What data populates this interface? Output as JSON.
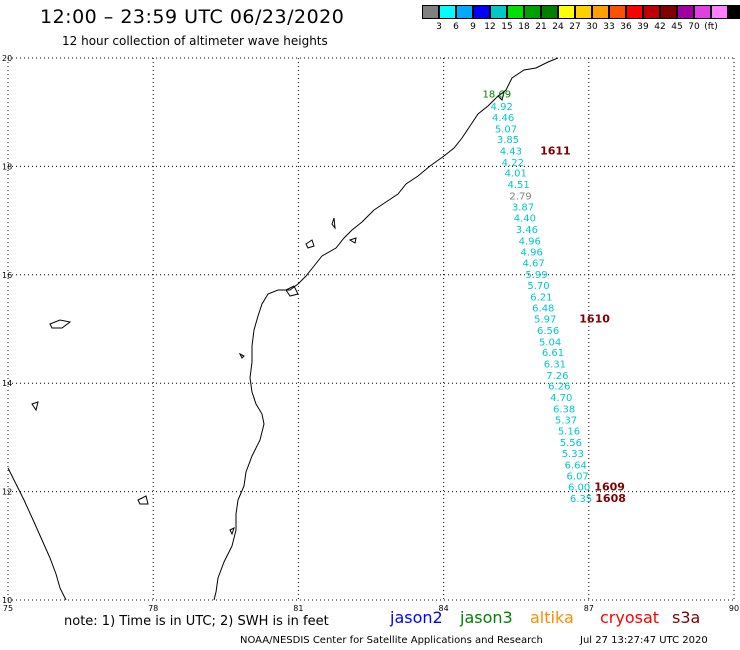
{
  "header": {
    "title": "12:00 – 23:59 UTC 06/23/2020",
    "subtitle": "12 hour collection of altimeter wave heights"
  },
  "legend": {
    "unit": "(ft)",
    "colors": [
      "#808080",
      "#00ffff",
      "#00aaff",
      "#0000ff",
      "#00c8c8",
      "#00e000",
      "#00a000",
      "#008000",
      "#ffff00",
      "#ffd000",
      "#ffa000",
      "#ff5000",
      "#ff0000",
      "#c00000",
      "#800000",
      "#a000a0",
      "#e040e0",
      "#ff80ff",
      "#000000"
    ],
    "labels": [
      "3",
      "6",
      "9",
      "12",
      "15",
      "18",
      "21",
      "24",
      "27",
      "30",
      "33",
      "36",
      "39",
      "42",
      "45",
      "70"
    ]
  },
  "axes": {
    "x_ticks": [
      "75",
      "78",
      "81",
      "84",
      "87",
      "90"
    ],
    "y_ticks": [
      "20",
      "18",
      "16",
      "14",
      "12",
      "10"
    ]
  },
  "observations": [
    {
      "value": "18.69",
      "lon": 85.1,
      "lat": 19.27,
      "color": "#008000"
    },
    {
      "value": "4.92",
      "lon": 85.2,
      "lat": 19.04,
      "color": "#00c8c8"
    },
    {
      "value": "4.46",
      "lon": 85.23,
      "lat": 18.84,
      "color": "#00c8c8"
    },
    {
      "value": "5.07",
      "lon": 85.29,
      "lat": 18.63,
      "color": "#00c8c8"
    },
    {
      "value": "3.85",
      "lon": 85.33,
      "lat": 18.43,
      "color": "#00c8c8"
    },
    {
      "value": "4.43",
      "lon": 85.39,
      "lat": 18.22,
      "color": "#00c8c8"
    },
    {
      "value": "4.22",
      "lon": 85.43,
      "lat": 18.01,
      "color": "#00c8c8"
    },
    {
      "value": "4.01",
      "lon": 85.49,
      "lat": 17.81,
      "color": "#00c8c8"
    },
    {
      "value": "4.51",
      "lon": 85.55,
      "lat": 17.6,
      "color": "#00c8c8"
    },
    {
      "value": "2.79",
      "lon": 85.59,
      "lat": 17.39,
      "color": "#808080"
    },
    {
      "value": "3.87",
      "lon": 85.64,
      "lat": 17.19,
      "color": "#00c8c8"
    },
    {
      "value": "4.40",
      "lon": 85.68,
      "lat": 16.98,
      "color": "#00c8c8"
    },
    {
      "value": "3.46",
      "lon": 85.72,
      "lat": 16.77,
      "color": "#00c8c8"
    },
    {
      "value": "4.96",
      "lon": 85.78,
      "lat": 16.56,
      "color": "#00c8c8"
    },
    {
      "value": "4.96",
      "lon": 85.82,
      "lat": 16.36,
      "color": "#00c8c8"
    },
    {
      "value": "4.67",
      "lon": 85.86,
      "lat": 16.15,
      "color": "#00c8c8"
    },
    {
      "value": "5.99",
      "lon": 85.92,
      "lat": 15.94,
      "color": "#00c8c8"
    },
    {
      "value": "5.70",
      "lon": 85.96,
      "lat": 15.74,
      "color": "#00c8c8"
    },
    {
      "value": "6.21",
      "lon": 86.02,
      "lat": 15.53,
      "color": "#00c8c8"
    },
    {
      "value": "6.48",
      "lon": 86.06,
      "lat": 15.32,
      "color": "#00c8c8"
    },
    {
      "value": "5.97",
      "lon": 86.1,
      "lat": 15.12,
      "color": "#00c8c8"
    },
    {
      "value": "6.56",
      "lon": 86.16,
      "lat": 14.91,
      "color": "#00c8c8"
    },
    {
      "value": "5.04",
      "lon": 86.2,
      "lat": 14.7,
      "color": "#00c8c8"
    },
    {
      "value": "6.61",
      "lon": 86.26,
      "lat": 14.5,
      "color": "#00c8c8"
    },
    {
      "value": "6.31",
      "lon": 86.3,
      "lat": 14.29,
      "color": "#00c8c8"
    },
    {
      "value": "7.26",
      "lon": 86.35,
      "lat": 14.08,
      "color": "#00c8c8"
    },
    {
      "value": "6.26",
      "lon": 86.39,
      "lat": 13.88,
      "color": "#00c8c8"
    },
    {
      "value": "4.70",
      "lon": 86.43,
      "lat": 13.67,
      "color": "#00c8c8"
    },
    {
      "value": "6.38",
      "lon": 86.49,
      "lat": 13.46,
      "color": "#00c8c8"
    },
    {
      "value": "5.37",
      "lon": 86.53,
      "lat": 13.26,
      "color": "#00c8c8"
    },
    {
      "value": "5.16",
      "lon": 86.59,
      "lat": 13.05,
      "color": "#00c8c8"
    },
    {
      "value": "5.56",
      "lon": 86.63,
      "lat": 12.84,
      "color": "#00c8c8"
    },
    {
      "value": "5.33",
      "lon": 86.67,
      "lat": 12.64,
      "color": "#00c8c8"
    },
    {
      "value": "6.64",
      "lon": 86.73,
      "lat": 12.43,
      "color": "#00c8c8"
    },
    {
      "value": "6.07",
      "lon": 86.77,
      "lat": 12.22,
      "color": "#00c8c8"
    },
    {
      "value": "6.00",
      "lon": 86.8,
      "lat": 12.02,
      "color": "#00c8c8"
    },
    {
      "value": "6.35",
      "lon": 86.84,
      "lat": 11.81,
      "color": "#00c8c8"
    }
  ],
  "times": [
    {
      "label": "1611",
      "lon": 86.31,
      "lat": 18.22
    },
    {
      "label": "1610",
      "lon": 87.12,
      "lat": 15.12
    },
    {
      "label": "1609",
      "lon": 87.43,
      "lat": 12.02
    },
    {
      "label": "1608",
      "lon": 87.45,
      "lat": 11.81
    }
  ],
  "footer": {
    "note": "note:  1) Time is in UTC;  2) SWH is in feet",
    "satellites": [
      {
        "name": "jason2",
        "color": "#0000ff"
      },
      {
        "name": "jason3",
        "color": "#008000"
      },
      {
        "name": "altika",
        "color": "#ff8c00"
      },
      {
        "name": "cryosat",
        "color": "#ff0000"
      },
      {
        "name": "s3a",
        "color": "#800000"
      }
    ],
    "credit": "NOAA/NESDIS Center for Satellite Applications and Research",
    "created": "Jul 27 13:27:47 UTC 2020"
  }
}
